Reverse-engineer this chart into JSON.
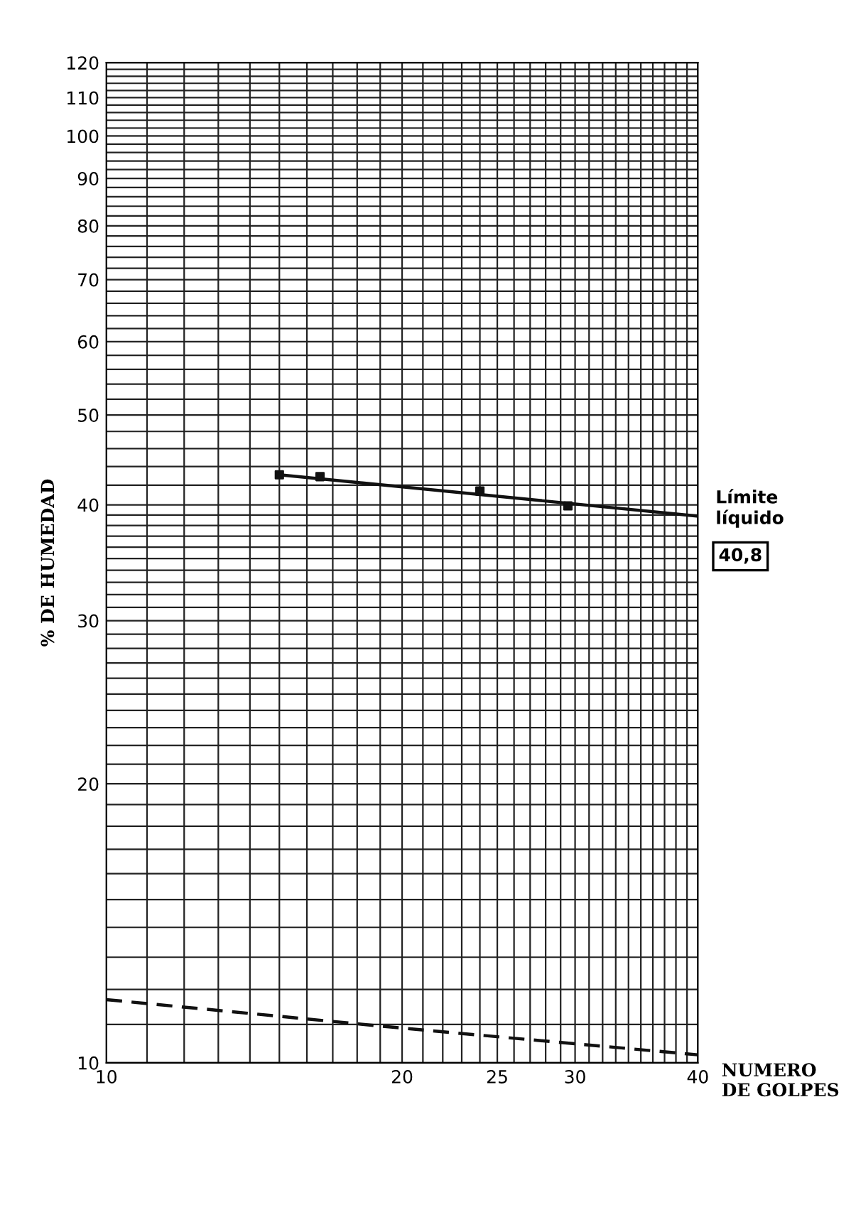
{
  "chart_data": {
    "type": "scatter",
    "xlabel": "NUMERO\nDE GOLPES",
    "ylabel": "% DE HUMEDAD",
    "log": "xy",
    "xlim": [
      10,
      40
    ],
    "ylim": [
      10,
      120
    ],
    "xticks": [
      10,
      {
        "value": 11,
        "label": null
      },
      {
        "value": 12,
        "label": null
      },
      {
        "value": 13,
        "label": null
      },
      {
        "value": 14,
        "label": null
      },
      {
        "value": 15,
        "label": null
      },
      {
        "value": 16,
        "label": null
      },
      {
        "value": 17,
        "label": null
      },
      {
        "value": 18,
        "label": null
      },
      {
        "value": 19,
        "label": null
      },
      20,
      {
        "value": 21,
        "label": null
      },
      {
        "value": 22,
        "label": null
      },
      {
        "value": 23,
        "label": null
      },
      {
        "value": 24,
        "label": null
      },
      25,
      {
        "value": 26,
        "label": null
      },
      {
        "value": 27,
        "label": null
      },
      {
        "value": 28,
        "label": null
      },
      {
        "value": 29,
        "label": null
      },
      30,
      {
        "value": 31,
        "label": null
      },
      {
        "value": 32,
        "label": null
      },
      {
        "value": 33,
        "label": null
      },
      {
        "value": 34,
        "label": null
      },
      {
        "value": 35,
        "label": null
      },
      {
        "value": 36,
        "label": null
      },
      {
        "value": 37,
        "label": null
      },
      {
        "value": 38,
        "label": null
      },
      {
        "value": 39,
        "label": null
      },
      40
    ],
    "yticks": [
      10,
      {
        "value": 11,
        "label": null
      },
      {
        "value": 12,
        "label": null
      },
      {
        "value": 13,
        "label": null
      },
      {
        "value": 14,
        "label": null
      },
      {
        "value": 15,
        "label": null
      },
      {
        "value": 16,
        "label": null
      },
      {
        "value": 17,
        "label": null
      },
      {
        "value": 18,
        "label": null
      },
      {
        "value": 19,
        "label": null
      },
      20,
      {
        "value": 21,
        "label": null
      },
      {
        "value": 22,
        "label": null
      },
      {
        "value": 23,
        "label": null
      },
      {
        "value": 24,
        "label": null
      },
      {
        "value": 25,
        "label": null
      },
      {
        "value": 26,
        "label": null
      },
      {
        "value": 27,
        "label": null
      },
      {
        "value": 28,
        "label": null
      },
      {
        "value": 29,
        "label": null
      },
      30,
      {
        "value": 31,
        "label": null
      },
      {
        "value": 32,
        "label": null
      },
      {
        "value": 33,
        "label": null
      },
      {
        "value": 34,
        "label": null
      },
      {
        "value": 35,
        "label": null
      },
      {
        "value": 36,
        "label": null
      },
      {
        "value": 37,
        "label": null
      },
      {
        "value": 38,
        "label": null
      },
      {
        "value": 39,
        "label": null
      },
      40,
      {
        "value": 42,
        "label": null
      },
      {
        "value": 44,
        "label": null
      },
      {
        "value": 46,
        "label": null
      },
      {
        "value": 48,
        "label": null
      },
      50,
      {
        "value": 52,
        "label": null
      },
      {
        "value": 54,
        "label": null
      },
      {
        "value": 56,
        "label": null
      },
      {
        "value": 58,
        "label": null
      },
      60,
      {
        "value": 62,
        "label": null
      },
      {
        "value": 64,
        "label": null
      },
      {
        "value": 66,
        "label": null
      },
      {
        "value": 68,
        "label": null
      },
      70,
      {
        "value": 72,
        "label": null
      },
      {
        "value": 74,
        "label": null
      },
      {
        "value": 76,
        "label": null
      },
      {
        "value": 78,
        "label": null
      },
      80,
      {
        "value": 82,
        "label": null
      },
      {
        "value": 84,
        "label": null
      },
      {
        "value": 86,
        "label": null
      },
      {
        "value": 88,
        "label": null
      },
      90,
      {
        "value": 92,
        "label": null
      },
      {
        "value": 94,
        "label": null
      },
      {
        "value": 96,
        "label": null
      },
      {
        "value": 98,
        "label": null
      },
      100,
      {
        "value": 102,
        "label": null
      },
      {
        "value": 104,
        "label": null
      },
      {
        "value": 106,
        "label": null
      },
      {
        "value": 108,
        "label": null
      },
      110,
      {
        "value": 112,
        "label": null
      },
      {
        "value": 114,
        "label": null
      },
      {
        "value": 116,
        "label": null
      },
      {
        "value": 118,
        "label": null
      },
      120
    ],
    "grid": true,
    "series": [
      {
        "color": "#111111",
        "marker": "square",
        "x": [
          15,
          16.5,
          24,
          29.5
        ],
        "values": [
          43.1,
          42.9,
          41.4,
          39.9
        ]
      },
      {
        "type": "line",
        "color": "#111111",
        "line_style": "solid",
        "x": [
          15,
          40
        ],
        "values": [
          43.1,
          38.9
        ]
      },
      {
        "type": "line",
        "color": "#111111",
        "line_style": "dashed",
        "x": [
          10,
          20,
          40
        ],
        "values": [
          11.7,
          10.9,
          10.2
        ]
      }
    ],
    "annotations": [
      "Límite\nlíquido",
      "40,8"
    ]
  }
}
